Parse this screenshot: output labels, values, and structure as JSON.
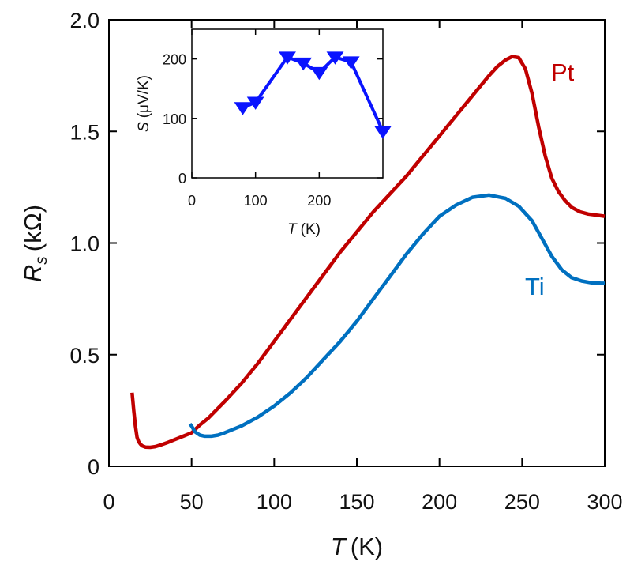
{
  "chart_data": [
    {
      "id": "main",
      "type": "line",
      "title": "",
      "xlabel": {
        "symbol": "T",
        "unit": "(K)"
      },
      "ylabel": {
        "symbol": "R",
        "subscript": "s",
        "unit": "(kΩ)"
      },
      "xlim": [
        0,
        300
      ],
      "ylim": [
        0,
        2.0
      ],
      "xticks": [
        0,
        50,
        100,
        150,
        200,
        250,
        300
      ],
      "yticks": [
        0,
        0.5,
        1.0,
        1.5,
        2.0
      ],
      "ytick_labels": [
        "0",
        "0.5",
        "1.0",
        "1.5",
        "2.0"
      ],
      "grid": false,
      "series": [
        {
          "name": "Pt",
          "color": "#c00000",
          "x": [
            14,
            15,
            16,
            17,
            18,
            19,
            20,
            22,
            25,
            28,
            31,
            35,
            40,
            45,
            50,
            55,
            60,
            70,
            80,
            90,
            100,
            110,
            120,
            130,
            140,
            150,
            160,
            170,
            180,
            190,
            200,
            210,
            220,
            230,
            235,
            240,
            244,
            248,
            252,
            256,
            260,
            264,
            268,
            272,
            276,
            280,
            285,
            290,
            295,
            300
          ],
          "y": [
            0.33,
            0.25,
            0.18,
            0.13,
            0.11,
            0.1,
            0.092,
            0.086,
            0.085,
            0.088,
            0.095,
            0.105,
            0.12,
            0.135,
            0.15,
            0.185,
            0.215,
            0.29,
            0.37,
            0.46,
            0.56,
            0.66,
            0.76,
            0.86,
            0.96,
            1.05,
            1.14,
            1.22,
            1.3,
            1.39,
            1.48,
            1.57,
            1.66,
            1.75,
            1.79,
            1.82,
            1.835,
            1.83,
            1.78,
            1.67,
            1.52,
            1.39,
            1.29,
            1.23,
            1.19,
            1.16,
            1.14,
            1.13,
            1.125,
            1.12
          ]
        },
        {
          "name": "Ti",
          "color": "#0070c0",
          "x": [
            49,
            50,
            52,
            55,
            58,
            62,
            66,
            70,
            80,
            90,
            100,
            110,
            120,
            130,
            140,
            150,
            160,
            170,
            180,
            190,
            200,
            210,
            220,
            230,
            240,
            248,
            256,
            262,
            268,
            274,
            280,
            286,
            292,
            298,
            300
          ],
          "y": [
            0.19,
            0.18,
            0.155,
            0.14,
            0.135,
            0.135,
            0.14,
            0.15,
            0.18,
            0.22,
            0.27,
            0.33,
            0.4,
            0.48,
            0.56,
            0.65,
            0.75,
            0.85,
            0.95,
            1.04,
            1.12,
            1.17,
            1.205,
            1.215,
            1.2,
            1.165,
            1.1,
            1.02,
            0.94,
            0.88,
            0.845,
            0.83,
            0.822,
            0.82,
            0.82
          ]
        }
      ]
    },
    {
      "id": "inset",
      "type": "line",
      "title": "",
      "xlabel": {
        "symbol": "T",
        "unit": "(K)"
      },
      "ylabel": {
        "symbol": "S",
        "unit": "(μV/K)"
      },
      "xlim": [
        0,
        300
      ],
      "ylim": [
        0,
        250
      ],
      "xticks": [
        0,
        100,
        200
      ],
      "yticks": [
        0,
        100,
        200
      ],
      "grid": false,
      "series": [
        {
          "name": "S",
          "color": "#0a14ff",
          "marker": "triangle-down",
          "x": [
            80,
            100,
            150,
            175,
            200,
            225,
            250,
            300
          ],
          "y": [
            118,
            127,
            203,
            193,
            177,
            203,
            195,
            78
          ]
        }
      ]
    }
  ]
}
